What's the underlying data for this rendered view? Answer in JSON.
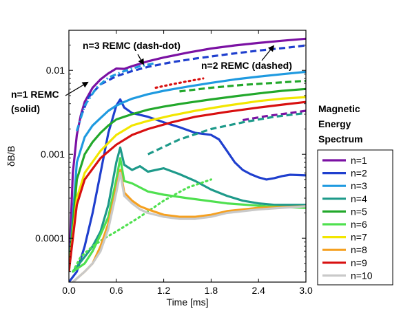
{
  "chart_data": {
    "type": "line",
    "title": "",
    "xlabel": "Time [ms]",
    "ylabel": "δB/B",
    "xlim": [
      0,
      3.0
    ],
    "ylim": [
      3e-05,
      0.03
    ],
    "yscale": "log",
    "xticks": [
      0,
      0.6,
      1.2,
      1.8,
      2.4,
      3.0
    ],
    "xtick_labels": [
      "0.0",
      "0.6",
      "1.2",
      "1.8",
      "2.4",
      "3.0"
    ],
    "yticks": [
      0.0001,
      0.001,
      0.01
    ],
    "ytick_labels": [
      "0.0001",
      "0.001",
      "0.01"
    ],
    "grid": false,
    "legend_placement": "right, outside",
    "legend_title": "Magnetic Energy Spectrum",
    "annotations": [
      {
        "text": "n=3 REMC (dash-dot)",
        "point": [
          0.95,
          0.0115
        ]
      },
      {
        "text": "n=2 REMC (dashed)",
        "point": [
          2.6,
          0.02
        ]
      },
      {
        "text": "n=1 REMC\n(solid)",
        "point": [
          0.25,
          0.0073
        ]
      }
    ],
    "series": [
      {
        "name": "n=1",
        "color": "#7b11a3",
        "linestyle": "solid",
        "x": [
          0,
          0.05,
          0.1,
          0.15,
          0.2,
          0.3,
          0.4,
          0.5,
          0.6,
          0.7,
          0.8,
          1.0,
          1.2,
          1.5,
          1.8,
          2.1,
          2.4,
          2.7,
          3.0
        ],
        "y": [
          4e-05,
          0.0006,
          0.0017,
          0.0029,
          0.0042,
          0.0062,
          0.0078,
          0.0092,
          0.0105,
          0.0104,
          0.0112,
          0.0128,
          0.0142,
          0.0162,
          0.0182,
          0.0198,
          0.0212,
          0.0225,
          0.0238
        ]
      },
      {
        "name": "n=1 REMC (dashed)",
        "color": "#7b11a3",
        "linestyle": "dashed",
        "x": [
          2.2,
          2.5,
          2.8,
          3.0
        ],
        "y": [
          0.00255,
          0.00285,
          0.0031,
          0.0033
        ]
      },
      {
        "name": "n=2",
        "color": "#1f3fce",
        "linestyle": "solid",
        "x": [
          0,
          0.1,
          0.2,
          0.3,
          0.4,
          0.5,
          0.6,
          0.65,
          0.7,
          0.8,
          1.0,
          1.2,
          1.4,
          1.6,
          1.8,
          1.9,
          2.0,
          2.1,
          2.2,
          2.3,
          2.4,
          2.5,
          2.6,
          2.7,
          2.8,
          3.0
        ],
        "y": [
          3e-05,
          4e-05,
          8e-05,
          0.0002,
          0.0006,
          0.0018,
          0.0038,
          0.0045,
          0.0036,
          0.0031,
          0.0028,
          0.0024,
          0.0021,
          0.0018,
          0.0017,
          0.0015,
          0.0011,
          0.0008,
          0.00065,
          0.00058,
          0.00053,
          0.0005,
          0.00052,
          0.00055,
          0.00057,
          0.00056
        ]
      },
      {
        "name": "n=2 REMC (dashed)",
        "color": "#1f3fce",
        "linestyle": "dashed",
        "x": [
          0.15,
          0.25,
          0.4,
          0.6,
          0.8,
          1.0,
          1.3,
          1.6,
          2.0,
          2.4,
          2.8,
          3.0
        ],
        "y": [
          0.0028,
          0.0048,
          0.0068,
          0.0085,
          0.0098,
          0.011,
          0.0125,
          0.0138,
          0.0155,
          0.0172,
          0.0188,
          0.0198
        ]
      },
      {
        "name": "n=3",
        "color": "#1f9ae0",
        "linestyle": "solid",
        "x": [
          0,
          0.1,
          0.2,
          0.3,
          0.4,
          0.5,
          0.6,
          0.7,
          0.8,
          1.0,
          1.2,
          1.5,
          1.8,
          2.1,
          2.4,
          2.7,
          3.0
        ],
        "y": [
          4e-05,
          0.0008,
          0.0016,
          0.0022,
          0.0027,
          0.0033,
          0.0038,
          0.0042,
          0.0046,
          0.0052,
          0.0057,
          0.0064,
          0.0071,
          0.0078,
          0.0084,
          0.009,
          0.0096
        ]
      },
      {
        "name": "n=3 REMC (dash-dot)",
        "color": "#1f9ae0",
        "linestyle": "dashdot",
        "x": [
          0.1,
          0.2,
          0.35,
          0.5,
          0.7,
          0.9,
          1.1
        ],
        "y": [
          0.0019,
          0.0038,
          0.0062,
          0.0082,
          0.0098,
          0.0112,
          0.0122
        ]
      },
      {
        "name": "n=4",
        "color": "#1e9a8a",
        "linestyle": "solid",
        "x": [
          0.05,
          0.2,
          0.3,
          0.4,
          0.5,
          0.6,
          0.65,
          0.7,
          0.8,
          0.9,
          1.0,
          1.2,
          1.4,
          1.6,
          1.8,
          2.0,
          2.2,
          2.4,
          2.6,
          2.8,
          3.0
        ],
        "y": [
          4e-05,
          6e-05,
          8e-05,
          0.00012,
          0.00025,
          0.0008,
          0.0012,
          0.00075,
          0.00065,
          0.00072,
          0.00062,
          0.00068,
          0.00058,
          0.00048,
          0.00038,
          0.00032,
          0.00028,
          0.00026,
          0.00025,
          0.00025,
          0.00025
        ]
      },
      {
        "name": "n=4 REMC (dashed)",
        "color": "#1e9a8a",
        "linestyle": "dashed",
        "x": [
          1.0,
          1.4,
          1.8,
          2.2,
          2.6,
          3.0
        ],
        "y": [
          0.001,
          0.0015,
          0.002,
          0.0024,
          0.0028,
          0.0031
        ]
      },
      {
        "name": "n=5",
        "color": "#22a82b",
        "linestyle": "solid",
        "x": [
          0,
          0.1,
          0.2,
          0.3,
          0.4,
          0.5,
          0.6,
          0.7,
          0.8,
          1.0,
          1.2,
          1.5,
          1.8,
          2.1,
          2.4,
          2.7,
          3.0
        ],
        "y": [
          4e-05,
          0.0005,
          0.001,
          0.0014,
          0.0018,
          0.0022,
          0.0026,
          0.0028,
          0.003,
          0.0034,
          0.0037,
          0.0041,
          0.0045,
          0.0049,
          0.0053,
          0.0057,
          0.006
        ]
      },
      {
        "name": "n=5 REMC (dashed)",
        "color": "#22a82b",
        "linestyle": "dashed",
        "x": [
          1.4,
          1.8,
          2.2,
          2.6,
          3.0
        ],
        "y": [
          0.0056,
          0.0062,
          0.0067,
          0.0071,
          0.0075
        ]
      },
      {
        "name": "n=6",
        "color": "#4fe04f",
        "linestyle": "solid",
        "x": [
          0.05,
          0.2,
          0.3,
          0.4,
          0.5,
          0.6,
          0.65,
          0.7,
          0.8,
          1.0,
          1.2,
          1.5,
          2.0,
          2.5,
          3.0
        ],
        "y": [
          4e-05,
          5e-05,
          7e-05,
          0.00011,
          0.00018,
          0.0005,
          0.0009,
          0.00048,
          0.00045,
          0.00036,
          0.00033,
          0.0003,
          0.00026,
          0.00024,
          0.00023
        ]
      },
      {
        "name": "n=6 REMC (dotted)",
        "color": "#4fe04f",
        "linestyle": "dotted",
        "x": [
          0.05,
          0.15,
          0.3,
          0.45,
          0.6,
          0.9,
          1.2,
          1.5,
          1.8
        ],
        "y": [
          4e-05,
          6e-05,
          8e-05,
          0.0001,
          0.00012,
          0.00018,
          0.00028,
          0.0004,
          0.0005
        ]
      },
      {
        "name": "n=7",
        "color": "#f2e600",
        "linestyle": "solid",
        "x": [
          0,
          0.1,
          0.2,
          0.4,
          0.6,
          0.8,
          1.0,
          1.3,
          1.6,
          2.0,
          2.4,
          2.7,
          3.0
        ],
        "y": [
          4e-05,
          0.0003,
          0.0006,
          0.0011,
          0.0017,
          0.0022,
          0.0025,
          0.0029,
          0.0033,
          0.0038,
          0.0043,
          0.0046,
          0.0048
        ]
      },
      {
        "name": "n=8",
        "color": "#f5a020",
        "linestyle": "solid",
        "x": [
          0.05,
          0.2,
          0.3,
          0.4,
          0.5,
          0.6,
          0.65,
          0.7,
          0.8,
          0.9,
          1.0,
          1.2,
          1.4,
          1.6,
          1.8,
          2.0,
          2.4,
          3.0
        ],
        "y": [
          3e-05,
          4e-05,
          5e-05,
          8e-05,
          0.00015,
          0.0004,
          0.00065,
          0.00035,
          0.00028,
          0.00024,
          0.00022,
          0.00019,
          0.00018,
          0.00018,
          0.00019,
          0.00021,
          0.00023,
          0.00024
        ]
      },
      {
        "name": "n=9",
        "color": "#d81010",
        "linestyle": "solid",
        "x": [
          0,
          0.1,
          0.2,
          0.4,
          0.6,
          0.8,
          1.0,
          1.3,
          1.6,
          2.0,
          2.4,
          2.7,
          3.0
        ],
        "y": [
          4e-05,
          0.00025,
          0.0005,
          0.0009,
          0.0013,
          0.0017,
          0.002,
          0.0024,
          0.0028,
          0.0032,
          0.0036,
          0.0039,
          0.0042
        ]
      },
      {
        "name": "n=9 REMC (dotted)",
        "color": "#d81010",
        "linestyle": "dotted",
        "x": [
          1.1,
          1.3,
          1.5,
          1.7
        ],
        "y": [
          0.0062,
          0.0068,
          0.0074,
          0.008
        ]
      },
      {
        "name": "n=10",
        "color": "#c9c9c9",
        "linestyle": "solid",
        "x": [
          0.05,
          0.2,
          0.3,
          0.4,
          0.5,
          0.6,
          0.65,
          0.7,
          0.8,
          0.9,
          1.0,
          1.2,
          1.4,
          1.6,
          1.8,
          2.0,
          2.4,
          3.0
        ],
        "y": [
          3e-05,
          4e-05,
          5e-05,
          7e-05,
          0.00013,
          0.00035,
          0.0006,
          0.00032,
          0.00026,
          0.00022,
          0.0002,
          0.00018,
          0.00017,
          0.00017,
          0.00018,
          0.0002,
          0.00022,
          0.00024
        ]
      }
    ]
  }
}
